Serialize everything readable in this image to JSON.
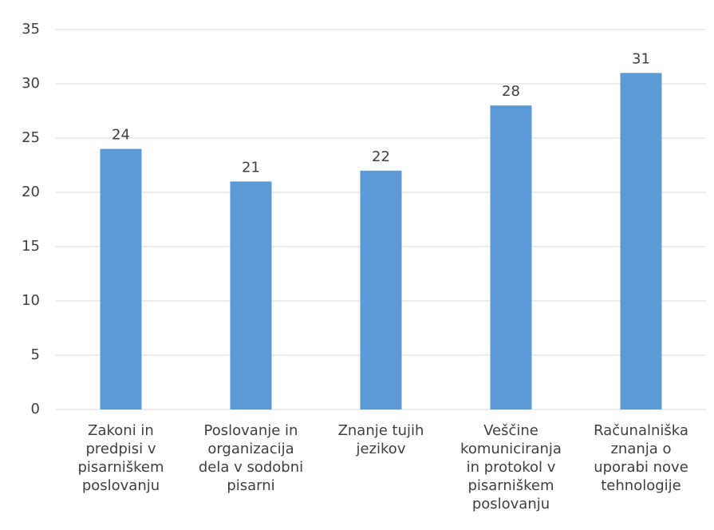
{
  "chart_data": {
    "type": "bar",
    "categories": [
      "Zakoni in predpisi v pisarniškem poslovanju",
      "Poslovanje in organizacija dela v sodobni pisarni",
      "Znanje tujih jezikov",
      "Veščine komuniciranja in protokol v pisarniškem poslovanju",
      "Računalniška znanja o uporabi nove tehnologije"
    ],
    "values": [
      24,
      21,
      22,
      28,
      31
    ],
    "color": "#5b9bd5",
    "ylim": [
      0,
      35
    ],
    "yticks": [
      0,
      5,
      10,
      15,
      20,
      25,
      30,
      35
    ],
    "grid": true
  }
}
